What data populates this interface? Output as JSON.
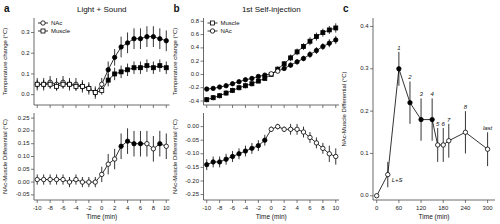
{
  "chart_data": [
    {
      "type": "line",
      "title": "Light + Sound",
      "annotations": [
        {
          "text": "a"
        }
      ],
      "x": [
        -10,
        -9,
        -8,
        -7,
        -6,
        -5,
        -4,
        -3,
        -2,
        -1,
        0,
        1,
        2,
        3,
        4,
        5,
        6,
        7,
        8,
        9,
        10
      ],
      "xlim": [
        -10.5,
        10.5
      ],
      "xticks": [
        -10,
        -8,
        -6,
        -4,
        -2,
        0,
        2,
        4,
        6,
        8,
        10
      ],
      "ylim": [
        -0.05,
        0.37
      ],
      "yticks": [
        {
          "value": 0.0,
          "label": "0.0"
        },
        0.1,
        0.2,
        0.3
      ],
      "ylabel": "Temperature change (°C)",
      "tick_labels": "y",
      "legend": "upper left",
      "series": [
        {
          "name": "NAc",
          "marker": "circle",
          "color": "black",
          "values": [
            0.05,
            0.05,
            0.06,
            0.05,
            0.06,
            0.05,
            0.05,
            0.04,
            0.03,
            0.01,
            0.05,
            0.12,
            0.18,
            0.23,
            0.25,
            0.27,
            0.27,
            0.28,
            0.28,
            0.27,
            0.26
          ],
          "errors": [
            0.03,
            0.03,
            0.03,
            0.03,
            0.03,
            0.03,
            0.03,
            0.03,
            0.03,
            0.03,
            0.03,
            0.04,
            0.04,
            0.05,
            0.05,
            0.05,
            0.05,
            0.05,
            0.05,
            0.05,
            0.05
          ],
          "filled": [
            false,
            false,
            false,
            false,
            false,
            false,
            false,
            false,
            false,
            false,
            false,
            true,
            true,
            true,
            true,
            true,
            true,
            true,
            true,
            true,
            true
          ]
        },
        {
          "name": "Muscle",
          "marker": "square",
          "color": "black",
          "values": [
            0.05,
            0.05,
            0.05,
            0.04,
            0.05,
            0.05,
            0.04,
            0.04,
            0.03,
            0.01,
            0.02,
            0.07,
            0.1,
            0.11,
            0.12,
            0.13,
            0.13,
            0.14,
            0.13,
            0.14,
            0.13
          ],
          "errors": [
            0.02,
            0.02,
            0.02,
            0.02,
            0.02,
            0.02,
            0.02,
            0.02,
            0.02,
            0.02,
            0.02,
            0.03,
            0.03,
            0.03,
            0.03,
            0.03,
            0.03,
            0.03,
            0.03,
            0.03,
            0.03
          ],
          "filled": [
            false,
            false,
            false,
            false,
            false,
            false,
            false,
            false,
            false,
            false,
            false,
            true,
            true,
            true,
            true,
            true,
            true,
            true,
            true,
            true,
            true
          ]
        }
      ]
    },
    {
      "type": "line",
      "x": [
        -10,
        -9,
        -8,
        -7,
        -6,
        -5,
        -4,
        -3,
        -2,
        -1,
        0,
        1,
        2,
        3,
        4,
        5,
        6,
        7,
        8,
        9,
        10
      ],
      "xlim": [
        -10.5,
        10.5
      ],
      "xticks": [
        -10,
        -8,
        -6,
        -4,
        -2,
        0,
        2,
        4,
        6,
        8,
        10
      ],
      "ylim": [
        -0.07,
        0.27
      ],
      "yticks": [
        -0.05,
        {
          "value": 0.0,
          "label": "0.00"
        },
        0.05,
        {
          "value": 0.1,
          "label": "0.10"
        },
        0.15,
        {
          "value": 0.2,
          "label": "0.20"
        },
        0.25
      ],
      "xlabel": "Time (min)",
      "ylabel": "NAc-Muscle Differential (°C)",
      "series": [
        {
          "marker": "circle",
          "color": "black",
          "values": [
            0.01,
            0.01,
            0.01,
            0.01,
            0.01,
            0.0,
            0.01,
            0.0,
            0.0,
            0.0,
            0.03,
            0.07,
            0.09,
            0.14,
            0.16,
            0.15,
            0.15,
            0.15,
            0.13,
            0.15,
            0.14
          ],
          "errors": [
            0.02,
            0.02,
            0.02,
            0.02,
            0.02,
            0.02,
            0.02,
            0.02,
            0.02,
            0.02,
            0.03,
            0.04,
            0.04,
            0.05,
            0.05,
            0.05,
            0.05,
            0.05,
            0.05,
            0.05,
            0.05
          ],
          "filled": [
            false,
            false,
            false,
            false,
            false,
            false,
            false,
            false,
            false,
            false,
            false,
            false,
            false,
            true,
            true,
            true,
            true,
            false,
            false,
            true,
            false
          ]
        }
      ]
    },
    {
      "type": "line",
      "title": "1st Self-injection",
      "annotations": [
        {
          "text": "b"
        }
      ],
      "x": [
        -10,
        -9,
        -8,
        -7,
        -6,
        -5,
        -4,
        -3,
        -2,
        -1,
        0,
        1,
        2,
        3,
        4,
        5,
        6,
        7,
        8,
        9,
        10
      ],
      "xlim": [
        -10.5,
        10.5
      ],
      "xticks": [
        -10,
        -8,
        -6,
        -4,
        -2,
        0,
        2,
        4,
        6,
        8,
        10
      ],
      "ylim": [
        -0.46,
        0.85
      ],
      "yticks": [
        -0.4,
        -0.2,
        {
          "value": 0.0,
          "label": "0.0"
        },
        0.2,
        0.4,
        0.6,
        0.8
      ],
      "ylabel": "Temperature change (°C)",
      "tick_labels": "y",
      "legend": "upper left",
      "series": [
        {
          "name": "Muscle",
          "marker": "square",
          "color": "black",
          "values": [
            -0.38,
            -0.35,
            -0.32,
            -0.28,
            -0.24,
            -0.2,
            -0.17,
            -0.14,
            -0.1,
            -0.06,
            0.0,
            0.08,
            0.16,
            0.25,
            0.34,
            0.42,
            0.5,
            0.57,
            0.63,
            0.67,
            0.7
          ],
          "errors": [
            0.04,
            0.04,
            0.04,
            0.04,
            0.04,
            0.04,
            0.04,
            0.04,
            0.03,
            0.03,
            0.03,
            0.04,
            0.04,
            0.05,
            0.05,
            0.05,
            0.06,
            0.06,
            0.06,
            0.06,
            0.07
          ],
          "filled": [
            true,
            true,
            true,
            true,
            true,
            true,
            true,
            true,
            true,
            true,
            false,
            true,
            true,
            true,
            true,
            true,
            true,
            true,
            true,
            true,
            true
          ]
        },
        {
          "name": "NAc",
          "marker": "circle",
          "color": "black",
          "values": [
            -0.22,
            -0.21,
            -0.19,
            -0.17,
            -0.14,
            -0.11,
            -0.08,
            -0.06,
            -0.03,
            -0.01,
            0.01,
            0.05,
            0.09,
            0.14,
            0.19,
            0.24,
            0.3,
            0.36,
            0.42,
            0.47,
            0.52
          ],
          "errors": [
            0.03,
            0.03,
            0.03,
            0.03,
            0.03,
            0.03,
            0.03,
            0.03,
            0.02,
            0.02,
            0.02,
            0.03,
            0.03,
            0.04,
            0.04,
            0.04,
            0.05,
            0.05,
            0.05,
            0.06,
            0.06
          ],
          "filled": [
            true,
            true,
            true,
            true,
            true,
            true,
            true,
            true,
            true,
            true,
            false,
            false,
            true,
            true,
            true,
            true,
            true,
            true,
            true,
            true,
            true
          ]
        }
      ]
    },
    {
      "type": "line",
      "x": [
        -10,
        -9,
        -8,
        -7,
        -6,
        -5,
        -4,
        -3,
        -2,
        -1,
        0,
        1,
        2,
        3,
        4,
        5,
        6,
        7,
        8,
        9,
        10
      ],
      "xlim": [
        -10.5,
        10.5
      ],
      "xticks": [
        -10,
        -8,
        -6,
        -4,
        -2,
        0,
        2,
        4,
        6,
        8,
        10
      ],
      "ylim": [
        -0.27,
        0.05
      ],
      "yticks": [
        -0.25,
        {
          "value": -0.2,
          "label": "-0.20"
        },
        -0.15,
        {
          "value": -0.1,
          "label": "-0.10"
        },
        -0.05,
        {
          "value": 0.0,
          "label": "0.00"
        }
      ],
      "xlabel": "Time (min)",
      "ylabel": "NAc-Muscle Differential (°C)",
      "series": [
        {
          "marker": "circle",
          "color": "black",
          "values": [
            -0.14,
            -0.13,
            -0.13,
            -0.12,
            -0.11,
            -0.1,
            -0.09,
            -0.08,
            -0.07,
            -0.05,
            -0.01,
            0.0,
            -0.01,
            -0.01,
            -0.01,
            -0.02,
            -0.04,
            -0.06,
            -0.08,
            -0.1,
            -0.11
          ],
          "errors": [
            0.02,
            0.02,
            0.02,
            0.02,
            0.02,
            0.02,
            0.02,
            0.02,
            0.02,
            0.02,
            0.01,
            0.01,
            0.01,
            0.02,
            0.02,
            0.02,
            0.02,
            0.02,
            0.02,
            0.03,
            0.03
          ],
          "filled": [
            true,
            true,
            true,
            true,
            true,
            true,
            true,
            true,
            true,
            true,
            false,
            false,
            false,
            false,
            false,
            false,
            false,
            false,
            false,
            false,
            false
          ]
        }
      ]
    },
    {
      "type": "line",
      "annotations": [
        {
          "text": "c"
        },
        {
          "text": "1",
          "x": 60
        },
        {
          "text": "2",
          "x": 90
        },
        {
          "text": "3",
          "x": 120
        },
        {
          "text": "4",
          "x": 150
        },
        {
          "text": "5",
          "x": 165
        },
        {
          "text": "6",
          "x": 180
        },
        {
          "text": "7",
          "x": 195
        },
        {
          "text": "8",
          "x": 240
        },
        {
          "text": "L+S",
          "x": 30,
          "position": "below"
        },
        {
          "text": "last",
          "x": 300
        }
      ],
      "x": [
        0,
        30,
        60,
        90,
        120,
        150,
        165,
        180,
        195,
        240,
        300
      ],
      "xlim": [
        -10,
        320
      ],
      "xticks": [
        0,
        60,
        120,
        180,
        240,
        300
      ],
      "ylim": [
        -0.01,
        0.42
      ],
      "yticks": [
        {
          "value": 0.0,
          "label": "0.0"
        },
        0.1,
        0.2,
        0.3,
        0.4
      ],
      "xlabel": "Time (min)",
      "ylabel": "NAc-Muscle Differential (°C)",
      "series": [
        {
          "marker": "circle",
          "color": "black",
          "values": [
            0.0,
            0.05,
            0.3,
            0.22,
            0.18,
            0.18,
            0.12,
            0.12,
            0.13,
            0.15,
            0.11
          ],
          "errors": [
            0.005,
            0.03,
            0.04,
            0.05,
            0.05,
            0.05,
            0.04,
            0.04,
            0.04,
            0.05,
            0.04
          ],
          "filled": [
            false,
            false,
            true,
            true,
            true,
            true,
            false,
            false,
            false,
            false,
            false
          ]
        }
      ]
    }
  ]
}
